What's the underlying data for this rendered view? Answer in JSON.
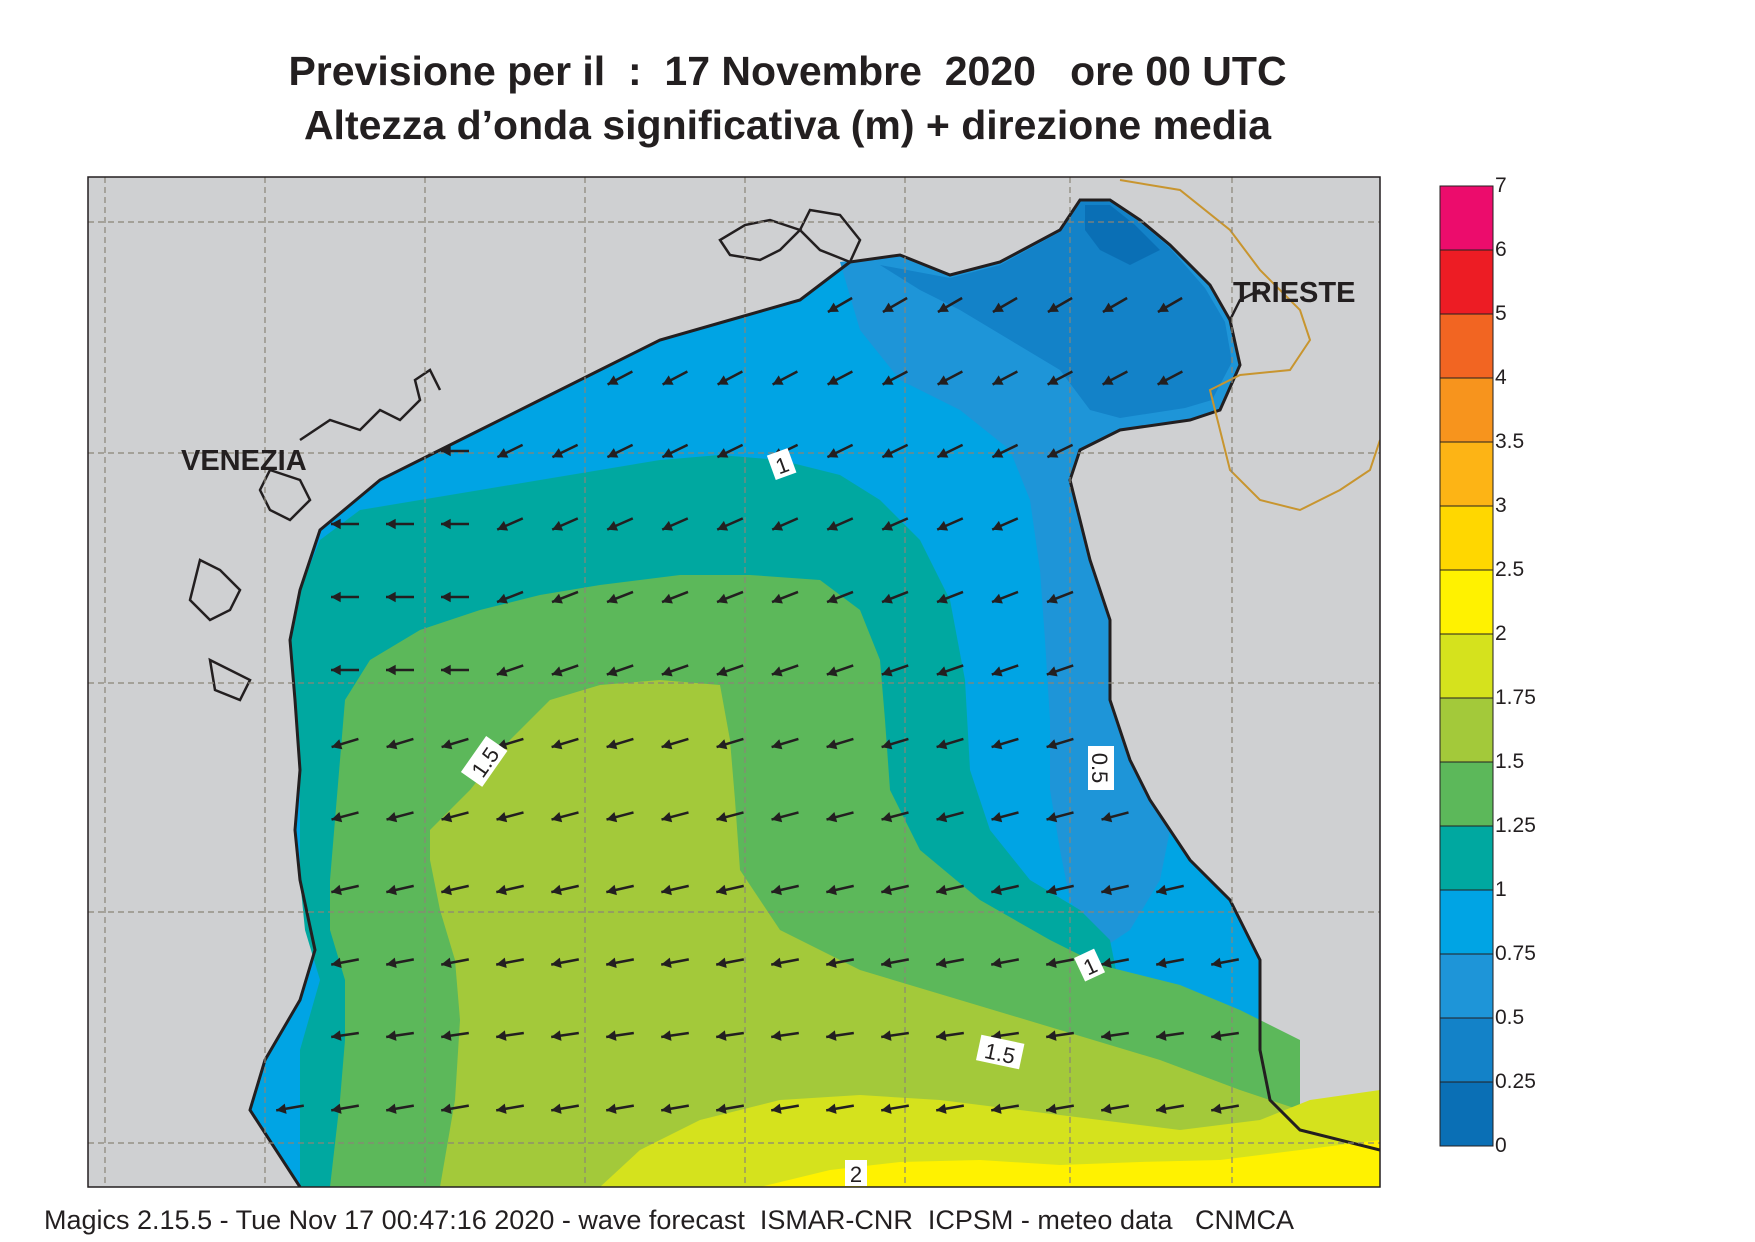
{
  "header": {
    "line1": "Previsione per il  :  17 Novembre  2020   ore 00 UTC",
    "line2": "Altezza d’onda significativa (m) + direzione media"
  },
  "map": {
    "land_color": "#cfd0d2",
    "city_labels": {
      "venezia": "VENEZIA",
      "trieste": "TRIESTE"
    },
    "contour_labels": [
      "1",
      "1.5",
      "0.5",
      "1",
      "1.5",
      "2"
    ],
    "arrow_direction": "southwest"
  },
  "legend": {
    "levels": [
      "0",
      "0.25",
      "0.5",
      "0.75",
      "1",
      "1.25",
      "1.5",
      "1.75",
      "2",
      "2.5",
      "3",
      "3.5",
      "4",
      "5",
      "6",
      "7"
    ],
    "colors": [
      "#0a6fb5",
      "#1382c8",
      "#1e95d8",
      "#00a4e4",
      "#00a8a0",
      "#5cb85a",
      "#a3c93a",
      "#d5e21d",
      "#fff200",
      "#ffd700",
      "#fdb415",
      "#f7941d",
      "#f26522",
      "#ed1c24",
      "#ec0c6c"
    ]
  },
  "footer": {
    "text": "Magics 2.15.5 - Tue Nov 17 00:47:16 2020 - wave forecast  ISMAR-CNR  ICPSM - meteo data   CNMCA"
  }
}
